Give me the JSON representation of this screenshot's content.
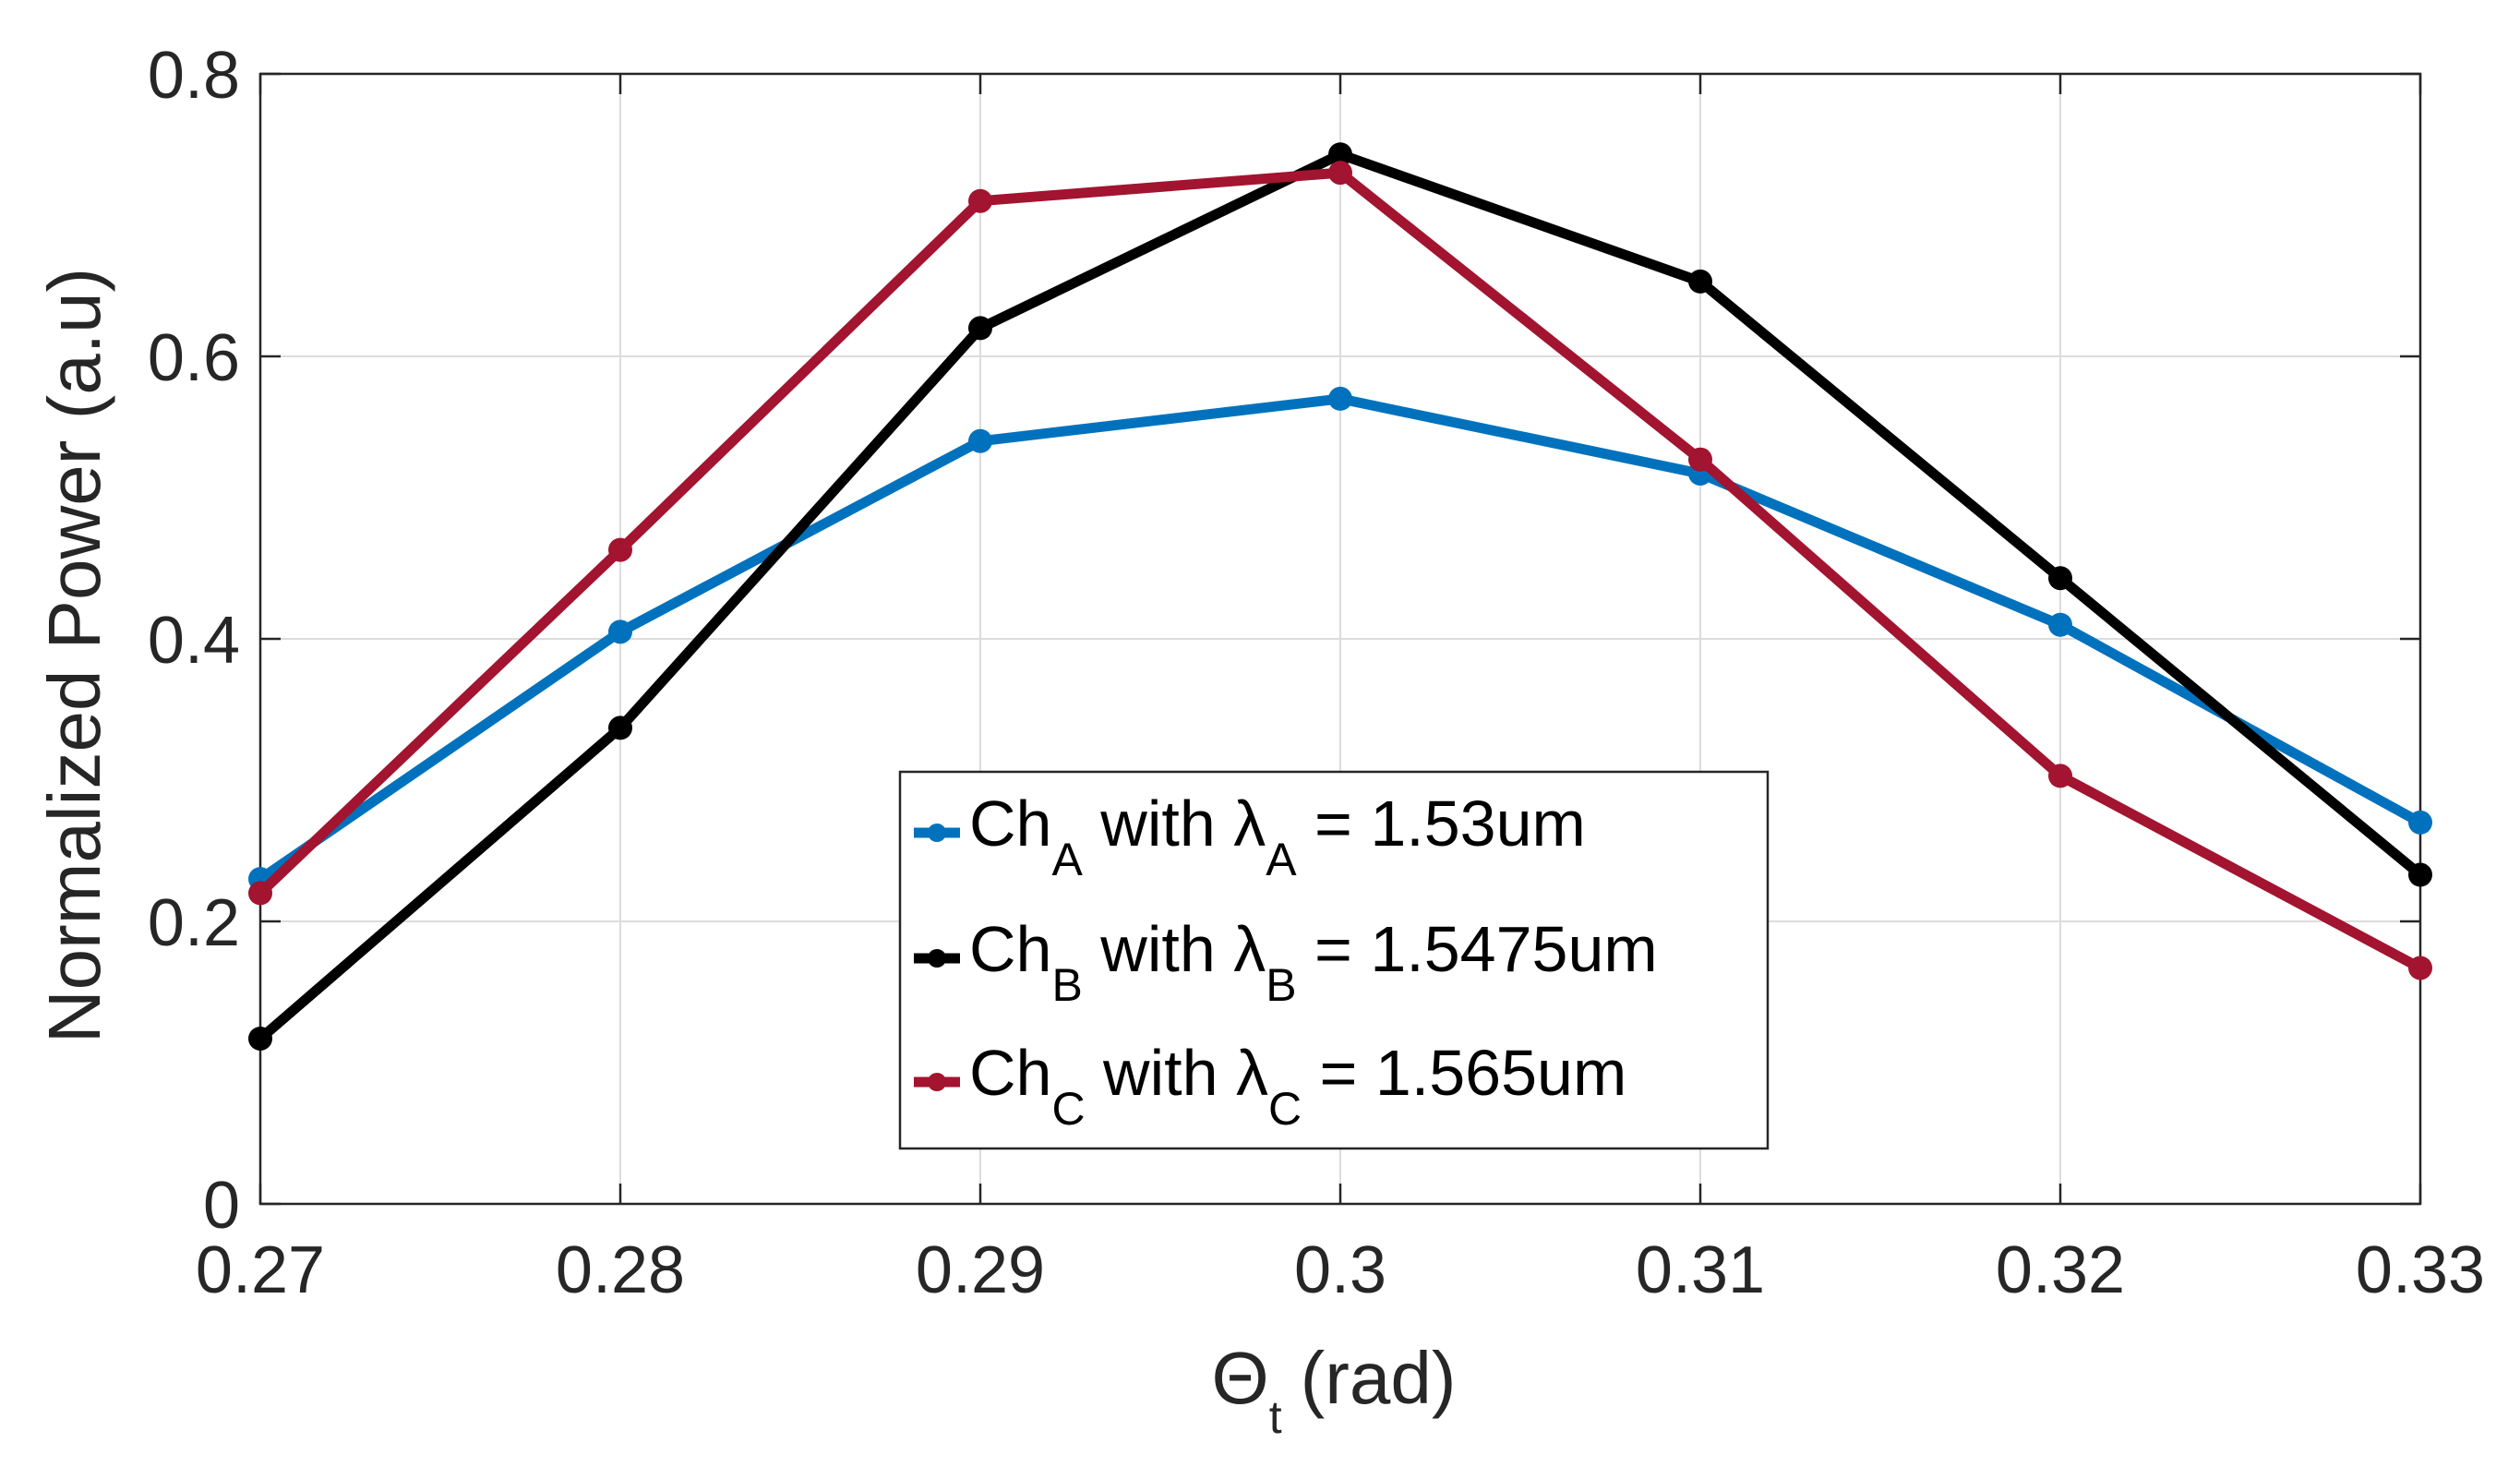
{
  "chart_data": {
    "type": "line",
    "title": "",
    "xlabel": {
      "symbol": "Θ",
      "subscript": "t",
      "unit": "(rad)"
    },
    "ylabel": "Normalized Power (a.u)",
    "xlim": [
      0.27,
      0.33
    ],
    "ylim": [
      0,
      0.8
    ],
    "grid": true,
    "legend_position": "bottom-center",
    "x": [
      0.27,
      0.28,
      0.29,
      0.3,
      0.31,
      0.32,
      0.33
    ],
    "xticks": [
      0.27,
      0.28,
      0.29,
      0.3,
      0.31,
      0.32,
      0.33
    ],
    "xtick_labels": [
      "0.27",
      "0.28",
      "0.29",
      "0.3",
      "0.31",
      "0.32",
      "0.33"
    ],
    "yticks": [
      0,
      0.2,
      0.4,
      0.6,
      0.8
    ],
    "ytick_labels": [
      "0",
      "0.2",
      "0.4",
      "0.6",
      "0.8"
    ],
    "series": [
      {
        "name": "ChA with λA = 1.53um",
        "legend": {
          "ch": "Ch",
          "ch_sub": "A",
          "with": " with ",
          "lambda": "λ",
          "lambda_sub": "A",
          "value": " = 1.53um"
        },
        "color": "#0072BD",
        "values": [
          0.23,
          0.405,
          0.54,
          0.57,
          0.517,
          0.41,
          0.27
        ]
      },
      {
        "name": "ChB with λB = 1.5475um",
        "legend": {
          "ch": "Ch",
          "ch_sub": "B",
          "with": " with ",
          "lambda": "λ",
          "lambda_sub": "B",
          "value": " = 1.5475um"
        },
        "color": "#000000",
        "values": [
          0.117,
          0.337,
          0.62,
          0.743,
          0.653,
          0.443,
          0.233
        ]
      },
      {
        "name": "ChC with λC = 1.565um",
        "legend": {
          "ch": "Ch",
          "ch_sub": "C",
          "with": " with ",
          "lambda": "λ",
          "lambda_sub": "C",
          "value": " = 1.565um"
        },
        "color": "#A2142F",
        "values": [
          0.22,
          0.463,
          0.71,
          0.73,
          0.527,
          0.303,
          0.167
        ]
      }
    ]
  }
}
